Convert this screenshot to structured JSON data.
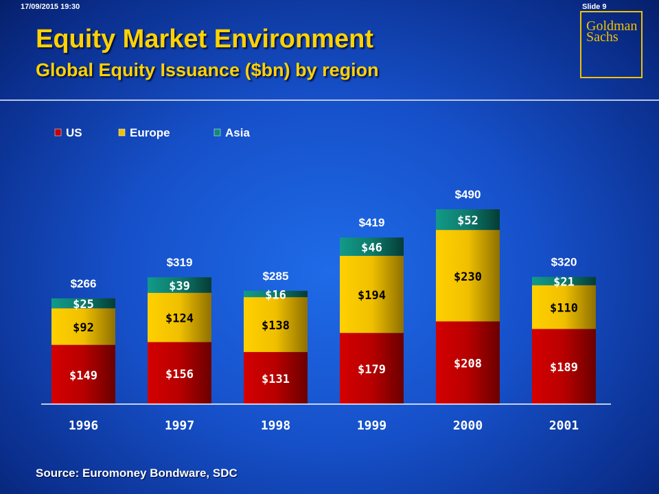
{
  "header": {
    "timestamp": "17/09/2015 19:30",
    "slide_label": "Slide 9",
    "title": "Equity Market Environment",
    "subtitle": "Global Equity Issuance ($bn) by region",
    "logo_line1": "Goldman",
    "logo_line2": "Sachs"
  },
  "footer": {
    "source": "Source: Euromoney Bondware, SDC"
  },
  "colors": {
    "us": "#c40000",
    "europe": "#f0c000",
    "asia": "#0f8a7a",
    "label_white": "#ffffff",
    "label_dark": "#000000",
    "accent": "#ffd200"
  },
  "chart_data": {
    "type": "bar",
    "stacked": true,
    "categories": [
      "1996",
      "1997",
      "1998",
      "1999",
      "2000",
      "2001"
    ],
    "series": [
      {
        "name": "US",
        "values": [
          149,
          156,
          131,
          179,
          208,
          189
        ],
        "labels": [
          "$149",
          "$156",
          "$131",
          "$179",
          "$208",
          "$189"
        ]
      },
      {
        "name": "Europe",
        "values": [
          92,
          124,
          138,
          194,
          230,
          110
        ],
        "labels": [
          "$92",
          "$124",
          "$138",
          "$194",
          "$230",
          "$110"
        ]
      },
      {
        "name": "Asia",
        "values": [
          25,
          39,
          16,
          46,
          52,
          21
        ],
        "labels": [
          "$25",
          "$39",
          "$16",
          "$46",
          "$52",
          "$21"
        ]
      }
    ],
    "totals": [
      266,
      319,
      285,
      419,
      490,
      320
    ],
    "total_labels": [
      "$266",
      "$319",
      "$285",
      "$419",
      "$490",
      "$320"
    ],
    "legend_position": "top-left",
    "grid": false,
    "ylim": [
      0,
      490
    ]
  }
}
